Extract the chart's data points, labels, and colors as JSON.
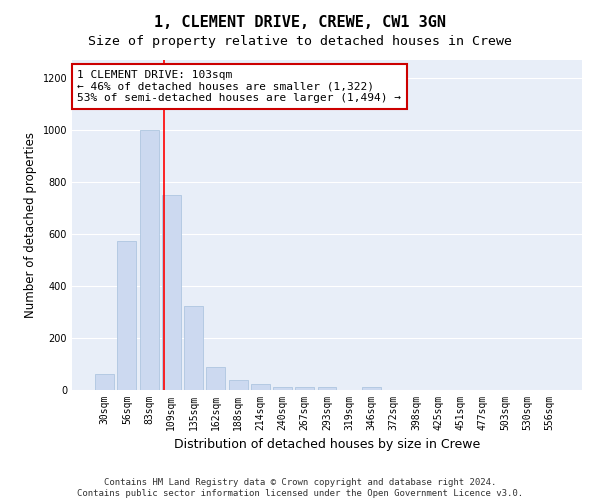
{
  "title": "1, CLEMENT DRIVE, CREWE, CW1 3GN",
  "subtitle": "Size of property relative to detached houses in Crewe",
  "xlabel": "Distribution of detached houses by size in Crewe",
  "ylabel": "Number of detached properties",
  "categories": [
    "30sqm",
    "56sqm",
    "83sqm",
    "109sqm",
    "135sqm",
    "162sqm",
    "188sqm",
    "214sqm",
    "240sqm",
    "267sqm",
    "293sqm",
    "319sqm",
    "346sqm",
    "372sqm",
    "398sqm",
    "425sqm",
    "451sqm",
    "477sqm",
    "503sqm",
    "530sqm",
    "556sqm"
  ],
  "values": [
    60,
    575,
    1000,
    750,
    325,
    90,
    40,
    22,
    12,
    10,
    10,
    0,
    10,
    0,
    0,
    0,
    0,
    0,
    0,
    0,
    0
  ],
  "bar_color": "#ccd9f0",
  "bar_edge_color": "#aec6e0",
  "red_line_index": 3,
  "annotation_text": "1 CLEMENT DRIVE: 103sqm\n← 46% of detached houses are smaller (1,322)\n53% of semi-detached houses are larger (1,494) →",
  "annotation_box_color": "#ffffff",
  "annotation_box_edge_color": "#cc0000",
  "ylim": [
    0,
    1270
  ],
  "yticks": [
    0,
    200,
    400,
    600,
    800,
    1000,
    1200
  ],
  "background_color": "#e8eef8",
  "grid_color": "#ffffff",
  "fig_background": "#ffffff",
  "footer_line1": "Contains HM Land Registry data © Crown copyright and database right 2024.",
  "footer_line2": "Contains public sector information licensed under the Open Government Licence v3.0.",
  "title_fontsize": 11,
  "subtitle_fontsize": 9.5,
  "xlabel_fontsize": 9,
  "ylabel_fontsize": 8.5,
  "tick_fontsize": 7,
  "annotation_fontsize": 8,
  "footer_fontsize": 6.5
}
